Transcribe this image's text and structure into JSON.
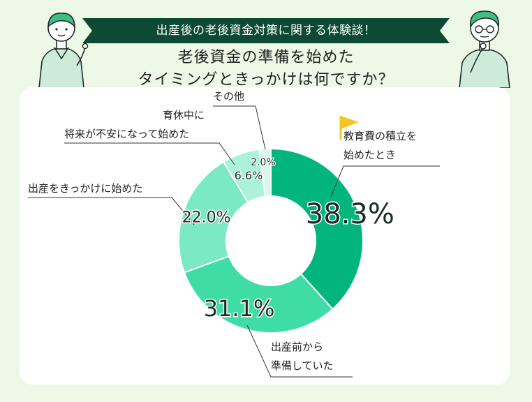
{
  "banner": {
    "text": "出産後の老後資金対策に関する体験談！"
  },
  "title": {
    "line1": "老後資金の準備を始めた",
    "line2": "タイミングときっかけは何ですか？"
  },
  "colors": {
    "background": "#eef8e7",
    "banner": "#0d4a34",
    "slices": [
      "#02b57c",
      "#3fdca6",
      "#7ae9c4",
      "#acf2da",
      "#d5f9ec"
    ],
    "flag": "#f3c623"
  },
  "chart_data": {
    "type": "pie",
    "donut": true,
    "title": "",
    "slices": [
      {
        "label": "教育費の積立を始めたとき",
        "label_lines": [
          "教育費の積立を",
          "始めたとき"
        ],
        "value": 38.3,
        "display": "38.3%"
      },
      {
        "label": "出産前から準備していた",
        "label_lines": [
          "出産前から",
          "準備していた"
        ],
        "value": 31.1,
        "display": "31.1%"
      },
      {
        "label": "出産をきっかけに始めた",
        "label_lines": [
          "出産をきっかけに始めた"
        ],
        "value": 22.0,
        "display": "22.0%"
      },
      {
        "label": "育休中に将来が不安になって始めた",
        "label_lines": [
          "育休中に",
          "将来が不安になって始めた"
        ],
        "value": 6.6,
        "display": "6.6%"
      },
      {
        "label": "その他",
        "label_lines": [
          "その他"
        ],
        "value": 2.0,
        "display": "2.0%"
      }
    ]
  }
}
